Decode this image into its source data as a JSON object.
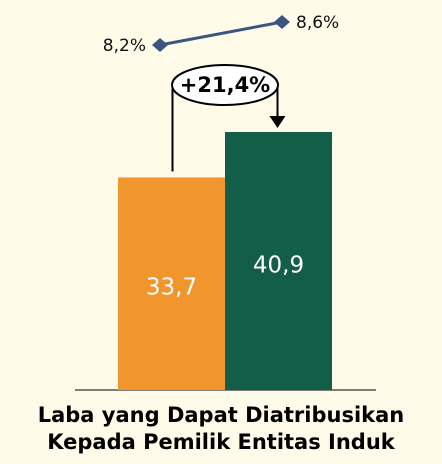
{
  "chart_data": {
    "type": "bar",
    "title": [
      "Laba yang Dapat Diatribusikan",
      "Kepada Pemilik Entitas Induk"
    ],
    "categories": [
      null,
      null
    ],
    "values": [
      33.7,
      40.9
    ],
    "value_labels": [
      "33,7",
      "40,9"
    ],
    "colors": [
      "#f0962d",
      "#135e48"
    ],
    "line": {
      "values": [
        8.2,
        8.6
      ],
      "value_labels": [
        "8,2%",
        "8,6%"
      ],
      "color": "#3a5680"
    },
    "annotation": "+21,4%"
  }
}
